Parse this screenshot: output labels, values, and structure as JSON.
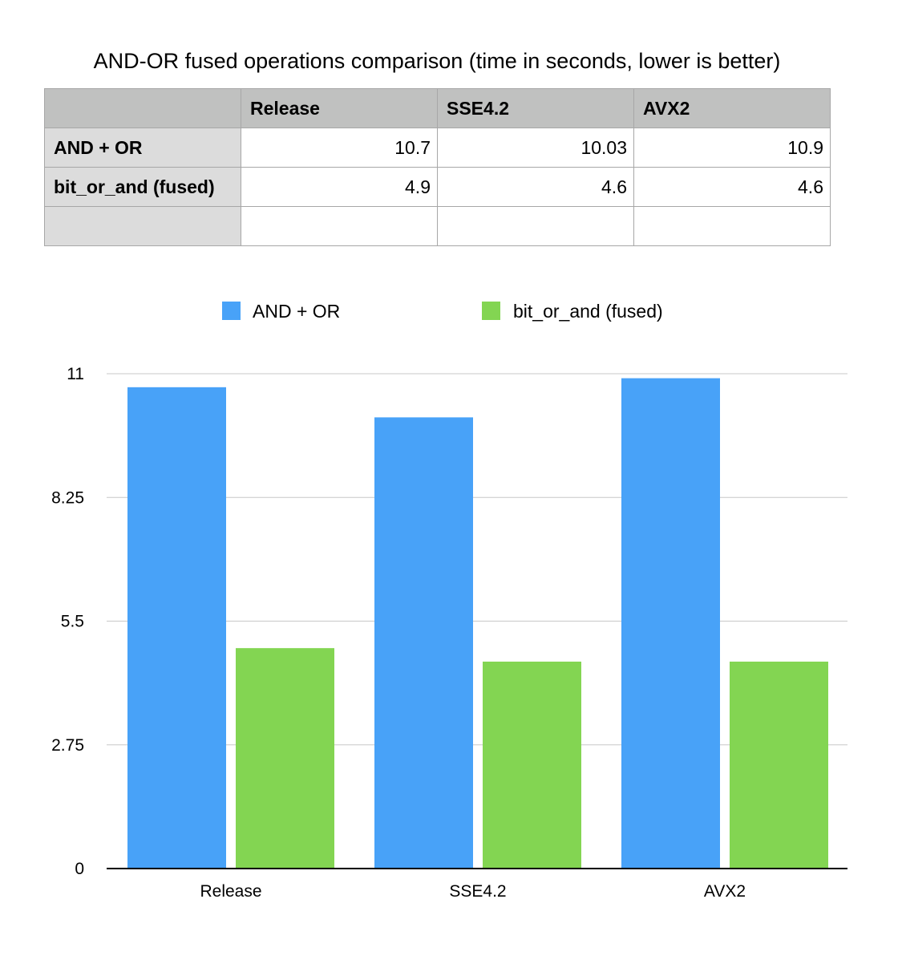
{
  "chart_data": {
    "type": "bar",
    "title": "AND-OR fused operations comparison (time in seconds, lower is better)",
    "categories": [
      "Release",
      "SSE4.2",
      "AVX2"
    ],
    "series": [
      {
        "name": "AND + OR",
        "values": [
          10.7,
          10.03,
          10.9
        ],
        "color": "#48a2f8"
      },
      {
        "name": "bit_or_and (fused)",
        "values": [
          4.9,
          4.6,
          4.6
        ],
        "color": "#83d552"
      }
    ],
    "yticks": [
      "0",
      "2.75",
      "5.5",
      "8.25",
      "11"
    ],
    "ylim": [
      0,
      11
    ],
    "grid": true,
    "legend": "top"
  },
  "table": {
    "headers": [
      "",
      "Release",
      "SSE4.2",
      "AVX2"
    ],
    "rows": [
      {
        "label": "AND + OR",
        "cells": [
          "10.7",
          "10.03",
          "10.9"
        ]
      },
      {
        "label": "bit_or_and (fused)",
        "cells": [
          "4.9",
          "4.6",
          "4.6"
        ]
      },
      {
        "label": "",
        "cells": [
          "",
          "",
          ""
        ]
      }
    ]
  },
  "colors": {
    "grid": "#c8c8c8",
    "axis": "#000000"
  }
}
